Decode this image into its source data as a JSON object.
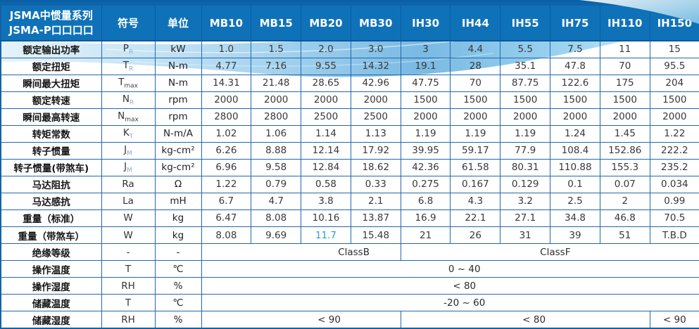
{
  "header": {
    "title_line1": "JSMA中惯量系列",
    "title_line2": "JSMA-P口口口口",
    "symbol_col": "符号",
    "unit_col": "单位",
    "models": [
      "MB10",
      "MB15",
      "MB20",
      "MB30",
      "IH30",
      "IH44",
      "IH55",
      "IH75",
      "IH110",
      "IH150"
    ]
  },
  "rows": [
    {
      "label": "额定输出功率",
      "sym": "P",
      "sub": "R",
      "sub_light": true,
      "unit": "kW",
      "values": [
        "1.0",
        "1.5",
        "2.0",
        "3.0",
        "3",
        "4.4",
        "5.5",
        "7.5",
        "11",
        "15"
      ]
    },
    {
      "label": "额定扭矩",
      "sym": "T",
      "sub": "R",
      "sub_light": true,
      "unit": "N-m",
      "values": [
        "4.77",
        "7.16",
        "9.55",
        "14.32",
        "19.1",
        "28",
        "35.1",
        "47.8",
        "70",
        "95.5"
      ]
    },
    {
      "label": "瞬间最大扭矩",
      "sym": "T",
      "sub": "max",
      "sub_light": false,
      "unit": "N-m",
      "values": [
        "14.31",
        "21.48",
        "28.65",
        "42.96",
        "47.75",
        "70",
        "87.75",
        "122.6",
        "175",
        "204"
      ]
    },
    {
      "label": "额定转速",
      "sym": "N",
      "sub": "R",
      "sub_light": true,
      "unit": "rpm",
      "values": [
        "2000",
        "2000",
        "2000",
        "2000",
        "1500",
        "1500",
        "1500",
        "1500",
        "1500",
        "1500"
      ]
    },
    {
      "label": "瞬间最高转速",
      "sym": "N",
      "sub": "max",
      "sub_light": false,
      "unit": "rpm",
      "values": [
        "2800",
        "2800",
        "2500",
        "2500",
        "2000",
        "2000",
        "2000",
        "2000",
        "2000",
        "2000"
      ]
    },
    {
      "label": "转矩常数",
      "sym": "K",
      "sub": "T",
      "sub_light": true,
      "unit": "N-m/A",
      "values": [
        "1.02",
        "1.06",
        "1.14",
        "1.13",
        "1.19",
        "1.19",
        "1.19",
        "1.24",
        "1.45",
        "1.22"
      ]
    },
    {
      "label": "转子惯量",
      "sym": "J",
      "sub": "M",
      "sub_light": true,
      "unit": "kg-cm²",
      "values": [
        "6.26",
        "8.88",
        "12.14",
        "17.92",
        "39.95",
        "59.17",
        "77.9",
        "108.4",
        "152.86",
        "222.2"
      ]
    },
    {
      "label": "转子惯量(带煞车)",
      "sym": "J",
      "sub": "M",
      "sub_light": true,
      "unit": "kg-cm²",
      "values": [
        "6.96",
        "9.58",
        "12.84",
        "18.62",
        "42.36",
        "61.58",
        "80.31",
        "110.88",
        "155.3",
        "235.2"
      ]
    },
    {
      "label": "马达阻抗",
      "sym": "Ra",
      "sub": "",
      "sub_light": false,
      "unit": "Ω",
      "values": [
        "1.22",
        "0.79",
        "0.58",
        "0.33",
        "0.275",
        "0.167",
        "0.129",
        "0.1",
        "0.07",
        "0.034"
      ]
    },
    {
      "label": "马达感抗",
      "sym": "La",
      "sub": "",
      "sub_light": false,
      "unit": "mH",
      "values": [
        "6.7",
        "4.7",
        "3.8",
        "2.1",
        "6.8",
        "4.3",
        "3.2",
        "2.5",
        "2",
        "0.99"
      ]
    },
    {
      "label": "重量（标准）",
      "sym": "W",
      "sub": "",
      "sub_light": false,
      "unit": "kg",
      "values": [
        "6.47",
        "8.08",
        "10.16",
        "13.87",
        "16.9",
        "22.1",
        "27.1",
        "34.8",
        "46.8",
        "70.5"
      ]
    },
    {
      "label": "重量（带煞车）",
      "sym": "W",
      "sub": "",
      "sub_light": false,
      "unit": "kg",
      "values": [
        "8.08",
        "9.69",
        "11.7",
        "15.48",
        "21",
        "26",
        "31",
        "39",
        "51",
        "T.B.D"
      ],
      "highlight": {
        "2": "#2b9dc9"
      }
    },
    {
      "label": "绝缘等级",
      "sym": "-",
      "sub": "",
      "sub_light": false,
      "unit": "-",
      "spans": [
        {
          "text": "ClassB",
          "cols": 4
        },
        {
          "text": "ClassF",
          "cols": 6
        }
      ]
    },
    {
      "label": "操作温度",
      "sym": "T",
      "sub": "",
      "sub_light": false,
      "unit": "℃",
      "spans": [
        {
          "text": "0 ~ 40",
          "cols": 10
        }
      ]
    },
    {
      "label": "操作湿度",
      "sym": "RH",
      "sub": "",
      "sub_light": false,
      "unit": "%",
      "spans": [
        {
          "text": "< 80",
          "cols": 10
        }
      ]
    },
    {
      "label": "储藏温度",
      "sym": "T",
      "sub": "",
      "sub_light": false,
      "unit": "℃",
      "spans": [
        {
          "text": "-20 ~ 60",
          "cols": 10
        }
      ]
    },
    {
      "label": "储藏湿度",
      "sym": "RH",
      "sub": "",
      "sub_light": false,
      "unit": "%",
      "spans": [
        {
          "text": "< 90",
          "cols": 4
        },
        {
          "text": "< 80",
          "cols": 5
        },
        {
          "text": "< 90",
          "cols": 1
        }
      ]
    }
  ],
  "colors": {
    "header_bg": "#0f72b8",
    "top_strip": "#0a5ca3",
    "grid_line": "#2268ae",
    "outer_border": "#1262a8",
    "swoosh_blue": "#7bbde3",
    "highlight_value": "#2b9dc9",
    "value_text": "#383838"
  }
}
